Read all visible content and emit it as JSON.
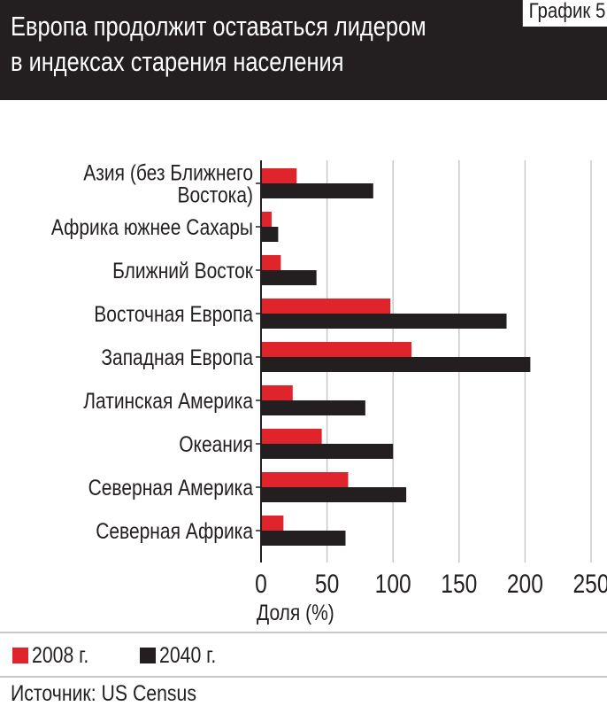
{
  "header": {
    "title_lines": [
      "Европа продолжит оставаться лидером",
      "в индексах старения населения"
    ],
    "figure_label": "График 5"
  },
  "colors": {
    "series_2008": "#e0242c",
    "series_2040": "#231f20",
    "header_bg": "#231f20",
    "grid": "#c8c8c8"
  },
  "chart_data": {
    "type": "bar",
    "orientation": "horizontal",
    "categories": [
      [
        "Азия (без Ближнего",
        "Востока)"
      ],
      [
        "Африка южнее Сахары"
      ],
      [
        "Ближний Восток"
      ],
      [
        "Восточная Европа"
      ],
      [
        "Западная Европа"
      ],
      [
        "Латинская Америка"
      ],
      [
        "Океания"
      ],
      [
        "Северная Америка"
      ],
      [
        "Северная Африка"
      ]
    ],
    "series": [
      {
        "name": "2008 г.",
        "values": [
          27,
          8,
          15,
          98,
          114,
          24,
          46,
          66,
          17
        ]
      },
      {
        "name": "2040 г.",
        "values": [
          85,
          13,
          42,
          186,
          204,
          79,
          100,
          110,
          64
        ]
      }
    ],
    "xlabel": "Доля (%)",
    "xlim": [
      0,
      250
    ],
    "xticks": [
      "0",
      "50",
      "100",
      "150",
      "200",
      "250"
    ],
    "xtick_values": [
      0,
      50,
      100,
      150,
      200,
      250
    ],
    "grid": "vertical",
    "legend_position": "bottom-left"
  },
  "legend": [
    {
      "label": "2008 г."
    },
    {
      "label": "2040 г."
    }
  ],
  "source": "Источник: US Census"
}
